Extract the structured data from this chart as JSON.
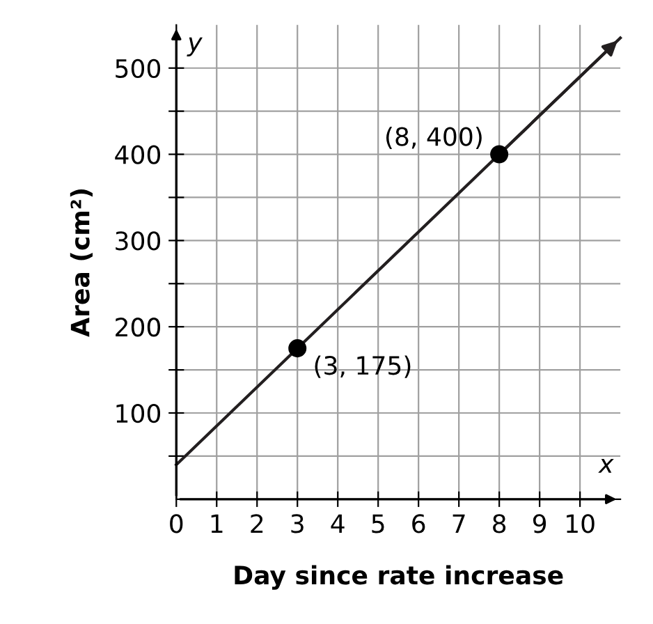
{
  "chart_data": {
    "type": "line",
    "xlabel": "Day since rate increase",
    "ylabel": "Area (cm²)",
    "x": [
      0,
      3,
      8,
      11
    ],
    "series": [
      {
        "color": "#231f20",
        "values": [
          40,
          175,
          400,
          535
        ]
      },
      {
        "type": "scatter",
        "color": "#000000",
        "x": [
          3,
          8
        ],
        "values": [
          175,
          400
        ],
        "marker": "circle"
      }
    ],
    "annotations": [
      {
        "text": "(3, 175)",
        "x": 3,
        "y": 175
      },
      {
        "text": "(8, 400)",
        "x": 8,
        "y": 400
      },
      "x",
      "y"
    ],
    "xlim": [
      0,
      11
    ],
    "ylim": [
      0,
      550
    ],
    "xticks": [
      {
        "value": 0,
        "label": "0"
      },
      1,
      2,
      3,
      4,
      5,
      6,
      7,
      8,
      9,
      10
    ],
    "yticks": [
      {
        "value": 50,
        "label": null
      },
      100,
      {
        "value": 150,
        "label": null
      },
      200,
      {
        "value": 250,
        "label": null
      },
      300,
      {
        "value": 350,
        "label": null
      },
      400,
      {
        "value": 450,
        "label": null
      },
      500
    ],
    "grid": true
  }
}
